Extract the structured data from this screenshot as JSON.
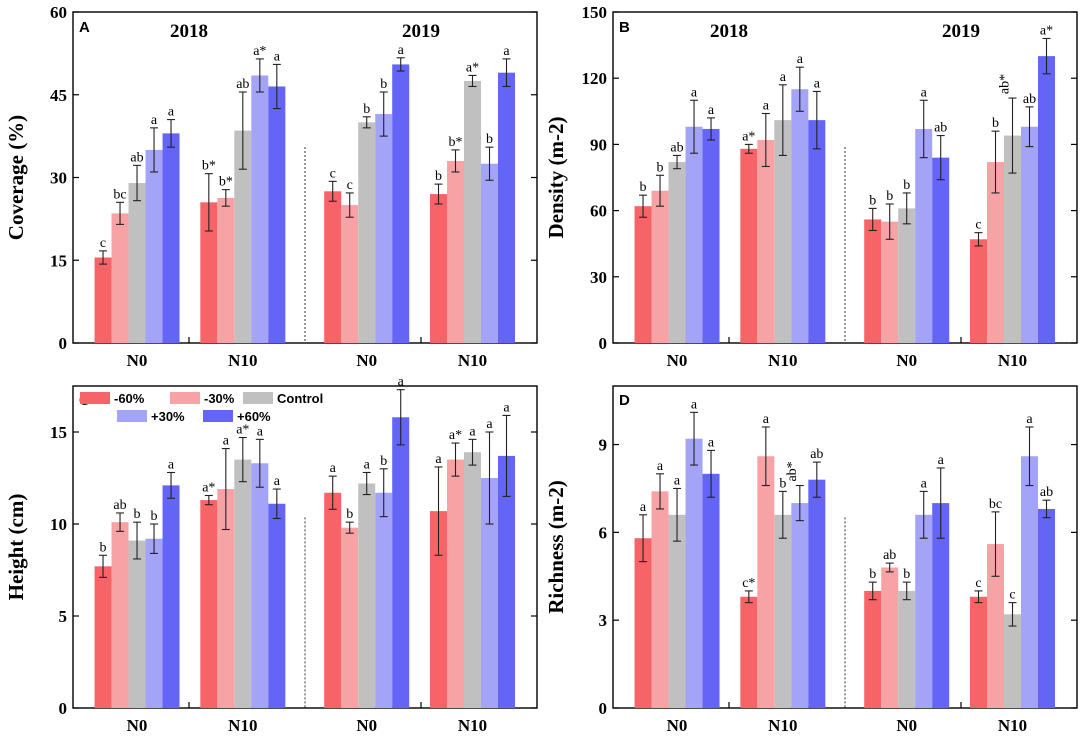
{
  "figure": {
    "colors": {
      "-60%": "#f76468",
      "-30%": "#f7a3a5",
      "Control": "#c0c0c0",
      "+30%": "#a3a3f7",
      "+60%": "#6464f7"
    },
    "legend": [
      "-60%",
      "-30%",
      "Control",
      "+30%",
      "+60%"
    ]
  },
  "chart_data": [
    {
      "type": "bar",
      "panel": "A",
      "ylabel": "Coverage (%)",
      "ylim": [
        0,
        60
      ],
      "yticks": [
        0,
        15,
        30,
        45,
        60
      ],
      "year_labels": [
        "2018",
        "2019"
      ],
      "categories": [
        "N0",
        "N10",
        "N0",
        "N10"
      ],
      "series": [
        {
          "name": "-60%",
          "values": [
            15.5,
            25.5,
            27.5,
            27.0
          ],
          "errors": [
            1.2,
            5.2,
            1.8,
            1.8
          ],
          "letters": [
            "c",
            "b*",
            "c",
            "b"
          ]
        },
        {
          "name": "-30%",
          "values": [
            23.5,
            26.3,
            25.0,
            33.0
          ],
          "errors": [
            2.0,
            1.5,
            2.2,
            2.0
          ],
          "letters": [
            "bc",
            "b*",
            "c",
            "b*"
          ]
        },
        {
          "name": "Control",
          "values": [
            29.0,
            38.5,
            40.0,
            47.5
          ],
          "errors": [
            3.2,
            7.0,
            1.0,
            1.0
          ],
          "letters": [
            "ab",
            "ab",
            "b",
            "a*"
          ]
        },
        {
          "name": "+30%",
          "values": [
            35.0,
            48.5,
            41.5,
            32.5
          ],
          "errors": [
            4.0,
            3.0,
            4.0,
            3.0
          ],
          "letters": [
            "a",
            "a*",
            "b",
            "b"
          ]
        },
        {
          "name": "+60%",
          "values": [
            38.0,
            46.5,
            50.5,
            49.0
          ],
          "errors": [
            2.5,
            4.0,
            1.2,
            2.5
          ],
          "letters": [
            "a",
            "a",
            "a",
            "a"
          ]
        }
      ]
    },
    {
      "type": "bar",
      "panel": "B",
      "ylabel": "Density (m-2)",
      "ylim": [
        0,
        150
      ],
      "yticks": [
        0,
        30,
        60,
        90,
        120,
        150
      ],
      "year_labels": [
        "2018",
        "2019"
      ],
      "categories": [
        "N0",
        "N10",
        "N0",
        "N10"
      ],
      "series": [
        {
          "name": "-60%",
          "values": [
            62,
            88,
            56,
            47
          ],
          "errors": [
            5,
            2,
            5,
            3
          ],
          "letters": [
            "b",
            "a*",
            "b",
            "c"
          ]
        },
        {
          "name": "-30%",
          "values": [
            69,
            92,
            55,
            82
          ],
          "errors": [
            7,
            12,
            8,
            14
          ],
          "letters": [
            "b",
            "a",
            "b",
            "b"
          ]
        },
        {
          "name": "Control",
          "values": [
            82,
            101,
            61,
            94
          ],
          "errors": [
            3,
            16,
            7,
            17
          ],
          "letters": [
            "ab",
            "a",
            "b",
            "ab*"
          ]
        },
        {
          "name": "+30%",
          "values": [
            98,
            115,
            97,
            98
          ],
          "errors": [
            12,
            10,
            13,
            9
          ],
          "letters": [
            "a",
            "a",
            "a",
            "ab"
          ]
        },
        {
          "name": "+60%",
          "values": [
            97,
            101,
            84,
            130
          ],
          "errors": [
            5,
            13,
            10,
            8
          ],
          "letters": [
            "a",
            "a",
            "ab",
            "a*"
          ]
        }
      ]
    },
    {
      "type": "bar",
      "panel": "C",
      "ylabel": "Height (cm)",
      "ylim": [
        0,
        17.5
      ],
      "yticks": [
        0,
        5,
        10,
        15
      ],
      "categories": [
        "N0",
        "N10",
        "N0",
        "N10"
      ],
      "series": [
        {
          "name": "-60%",
          "values": [
            7.7,
            11.3,
            11.7,
            10.7
          ],
          "errors": [
            0.6,
            0.25,
            0.9,
            2.4
          ],
          "letters": [
            "b",
            "a*",
            "a",
            "a"
          ]
        },
        {
          "name": "-30%",
          "values": [
            10.1,
            11.9,
            9.8,
            13.5
          ],
          "errors": [
            0.5,
            2.2,
            0.3,
            0.9
          ],
          "letters": [
            "ab",
            "a",
            "b",
            "a*"
          ]
        },
        {
          "name": "Control",
          "values": [
            9.1,
            13.5,
            12.2,
            13.9
          ],
          "errors": [
            1.0,
            1.2,
            0.6,
            0.7
          ],
          "letters": [
            "b",
            "a*",
            "a",
            "a"
          ]
        },
        {
          "name": "+30%",
          "values": [
            9.2,
            13.3,
            11.7,
            12.5
          ],
          "errors": [
            0.8,
            1.3,
            1.3,
            2.5
          ],
          "letters": [
            "b",
            "a",
            "b",
            "a"
          ]
        },
        {
          "name": "+60%",
          "values": [
            12.1,
            11.1,
            15.8,
            13.7
          ],
          "errors": [
            0.7,
            0.8,
            1.5,
            2.2
          ],
          "letters": [
            "a",
            "a",
            "a",
            "a"
          ]
        }
      ]
    },
    {
      "type": "bar",
      "panel": "D",
      "ylabel": "Richness (m-2)",
      "ylim": [
        0,
        11
      ],
      "yticks": [
        0,
        3,
        6,
        9
      ],
      "categories": [
        "N0",
        "N10",
        "N0",
        "N10"
      ],
      "series": [
        {
          "name": "-60%",
          "values": [
            5.8,
            3.8,
            4.0,
            3.8
          ],
          "errors": [
            0.8,
            0.2,
            0.3,
            0.2
          ],
          "letters": [
            "a",
            "c*",
            "b",
            "c"
          ]
        },
        {
          "name": "-30%",
          "values": [
            7.4,
            8.6,
            4.8,
            5.6
          ],
          "errors": [
            0.6,
            1.0,
            0.15,
            1.1
          ],
          "letters": [
            "a",
            "a",
            "ab",
            "bc"
          ]
        },
        {
          "name": "Control",
          "values": [
            6.6,
            6.6,
            4.0,
            3.2
          ],
          "errors": [
            0.9,
            0.8,
            0.3,
            0.4
          ],
          "letters": [
            "a",
            "b",
            "b",
            "c"
          ]
        },
        {
          "name": "+30%",
          "values": [
            9.2,
            7.0,
            6.6,
            8.6
          ],
          "errors": [
            0.9,
            0.6,
            0.8,
            1.0
          ],
          "letters": [
            "a",
            "ab*",
            "a",
            "a"
          ]
        },
        {
          "name": "+60%",
          "values": [
            8.0,
            7.8,
            7.0,
            6.8
          ],
          "errors": [
            0.8,
            0.6,
            1.2,
            0.3
          ],
          "letters": [
            "a",
            "ab",
            "a",
            "ab"
          ]
        }
      ]
    }
  ]
}
